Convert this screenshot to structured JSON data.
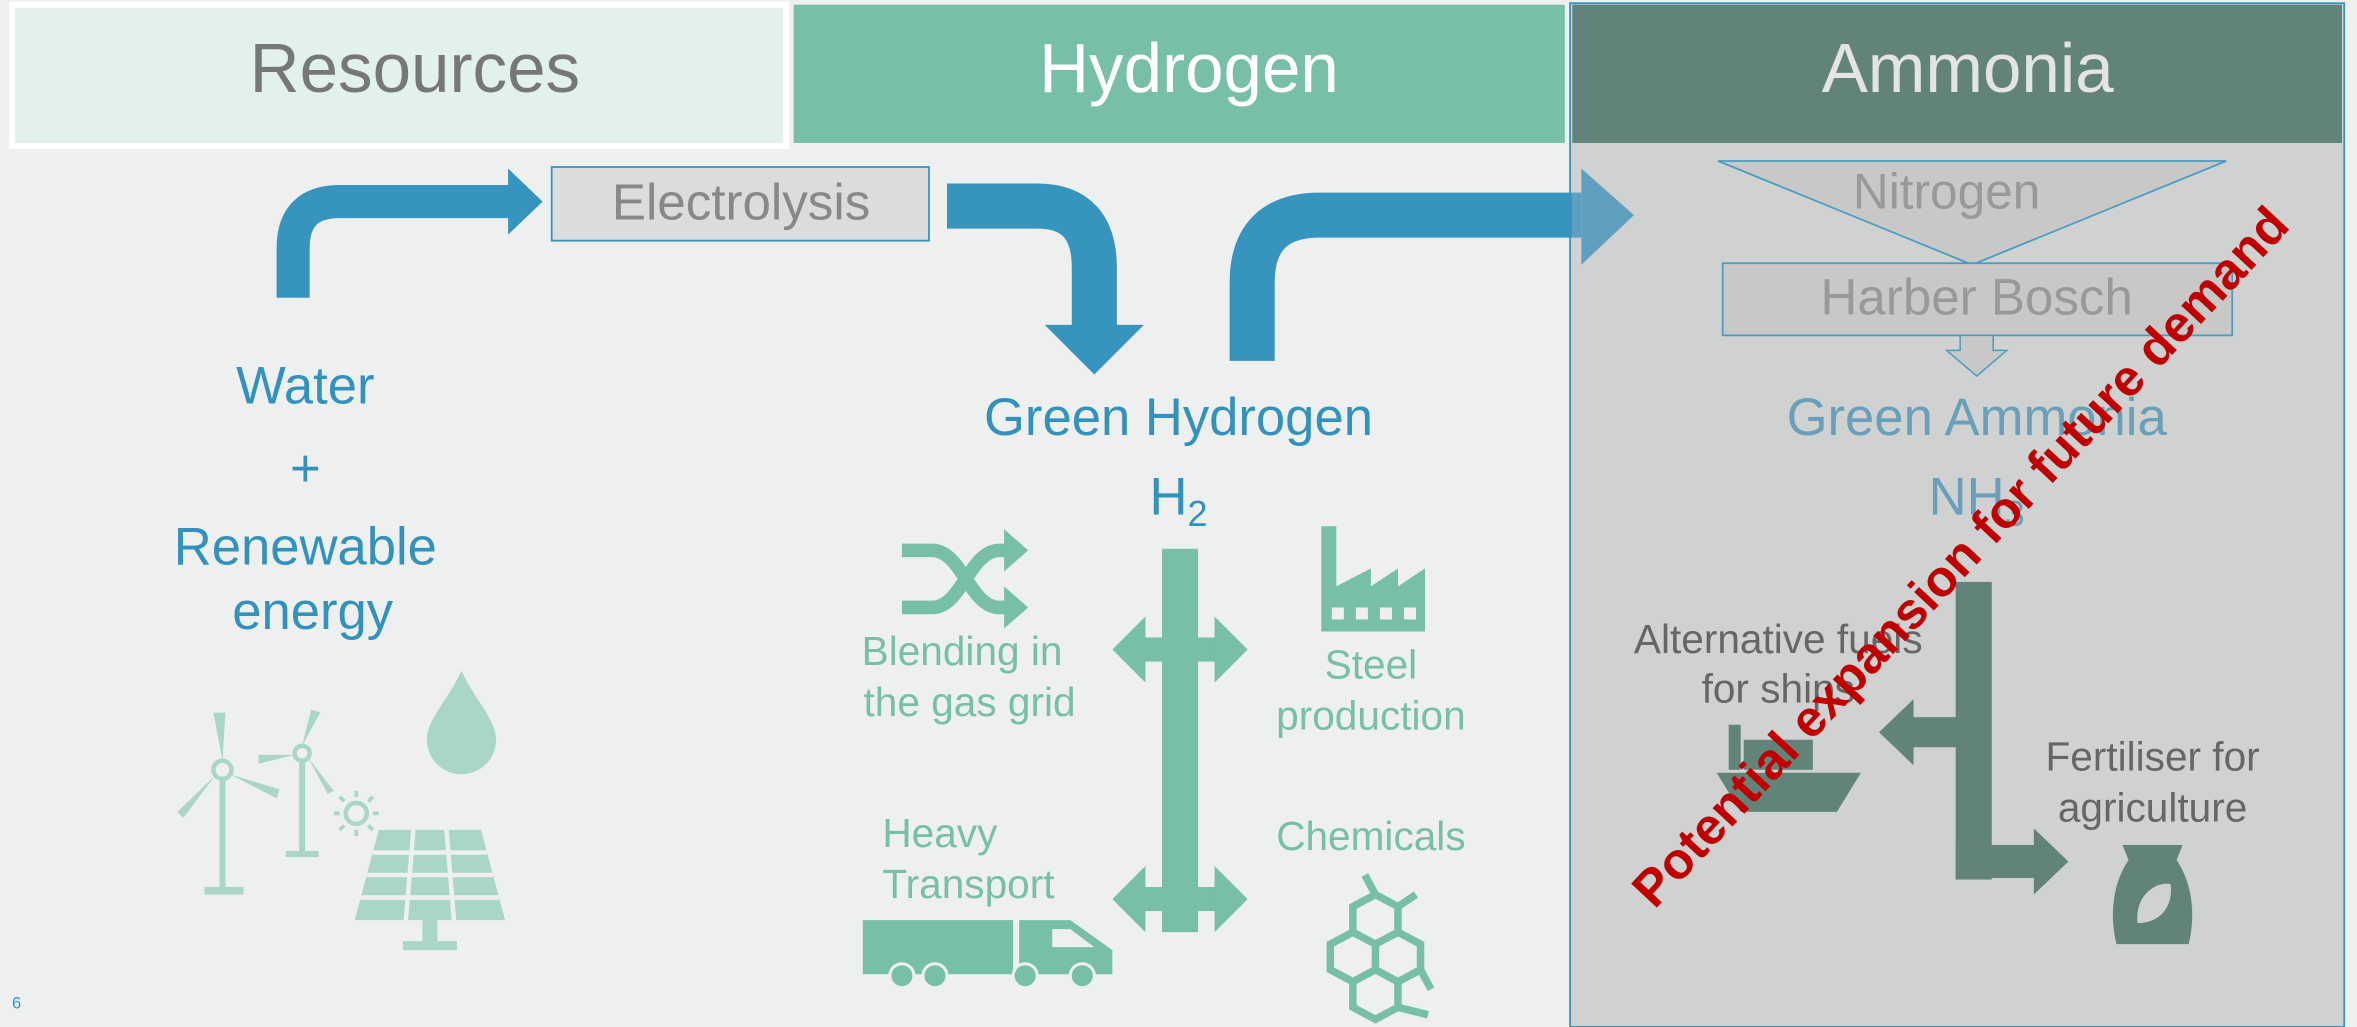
{
  "header": {
    "columns": [
      "Resources",
      "Hydrogen",
      "Ammonia"
    ]
  },
  "resources": {
    "lines": [
      "Water",
      "+",
      "Renewable",
      "energy"
    ]
  },
  "process": {
    "electrolysis": "Electrolysis",
    "nitrogen": "Nitrogen",
    "haber_bosch": "Harber Bosch"
  },
  "hydrogen": {
    "label": "Green Hydrogen",
    "formula": {
      "base": "H",
      "subscript": "2"
    },
    "uses": [
      {
        "lines": [
          "Blending in",
          "the gas grid"
        ]
      },
      {
        "lines": [
          "Steel",
          "production"
        ]
      },
      {
        "lines": [
          "Heavy",
          "Transport"
        ]
      },
      {
        "lines": [
          "Chemicals"
        ]
      }
    ]
  },
  "ammonia": {
    "label": "Green Ammonia",
    "formula": {
      "base": "NH",
      "subscript": "3"
    },
    "uses": [
      {
        "lines": [
          "Alternative fuels",
          "for ships"
        ]
      },
      {
        "lines": [
          "Fertiliser for",
          "agriculture"
        ]
      }
    ]
  },
  "overlay": "Potential expansion for future demand",
  "page_number": "6"
}
